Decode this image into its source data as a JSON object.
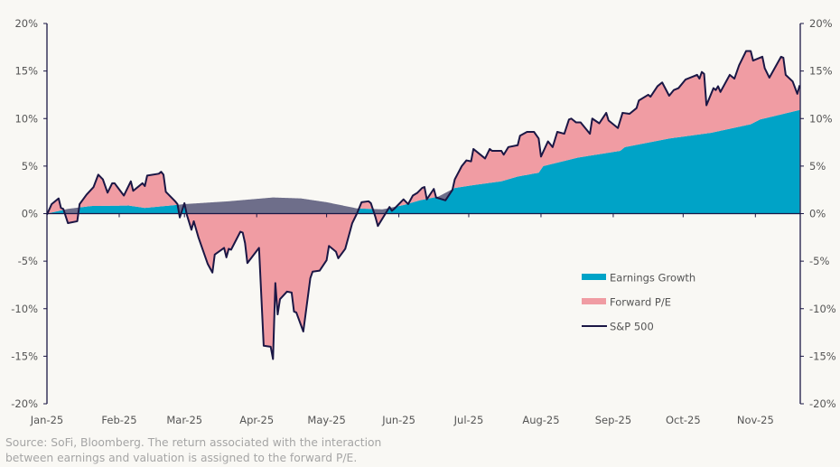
{
  "chart_data": {
    "type": "area",
    "title": "",
    "xlabel": "",
    "ylabel": "",
    "ylim": [
      -20,
      20
    ],
    "y_ticks": [
      "20%",
      "15%",
      "10%",
      "5%",
      "0%",
      "-5%",
      "-10%",
      "-15%",
      "-20%"
    ],
    "y_tick_values": [
      20,
      15,
      10,
      5,
      0,
      -5,
      -10,
      -15,
      -20
    ],
    "x_ticks": [
      "Jan-25",
      "Feb-25",
      "Mar-25",
      "Apr-25",
      "May-25",
      "Jun-25",
      "Jul-25",
      "Aug-25",
      "Sep-25",
      "Oct-25",
      "Nov-25"
    ],
    "x_tick_dates": [
      "2025-01-01",
      "2025-02-01",
      "2025-03-01",
      "2025-04-01",
      "2025-05-01",
      "2025-06-01",
      "2025-07-01",
      "2025-08-01",
      "2025-09-01",
      "2025-10-01",
      "2025-11-01"
    ],
    "xlim": [
      "2025-01-01",
      "2025-11-20"
    ],
    "grid": false,
    "legend_position": "right-center",
    "colors": {
      "earnings": "#00a3c7",
      "forward_pe": "#f09ca3",
      "overlap": "#6e6e8a",
      "sp500": "#1b1745"
    },
    "legend": [
      {
        "label": "Earnings Growth",
        "type": "area",
        "color": "#00a3c7"
      },
      {
        "label": "Forward P/E",
        "type": "area",
        "color": "#f09ca3"
      },
      {
        "label": "S&P 500",
        "type": "line",
        "color": "#1b1745"
      }
    ],
    "series": [
      {
        "name": "S&P 500",
        "unit": "%",
        "points": [
          [
            "2025-01-01",
            -0.1
          ],
          [
            "2025-01-03",
            1.0
          ],
          [
            "2025-01-06",
            1.6
          ],
          [
            "2025-01-07",
            0.6
          ],
          [
            "2025-01-08",
            0.5
          ],
          [
            "2025-01-10",
            -1.0
          ],
          [
            "2025-01-14",
            -0.8
          ],
          [
            "2025-01-15",
            1.0
          ],
          [
            "2025-01-18",
            2.0
          ],
          [
            "2025-01-21",
            2.8
          ],
          [
            "2025-01-23",
            4.1
          ],
          [
            "2025-01-25",
            3.6
          ],
          [
            "2025-01-27",
            2.2
          ],
          [
            "2025-01-29",
            3.2
          ],
          [
            "2025-01-30",
            3.2
          ],
          [
            "2025-02-03",
            1.9
          ],
          [
            "2025-02-06",
            3.4
          ],
          [
            "2025-02-07",
            2.4
          ],
          [
            "2025-02-11",
            3.2
          ],
          [
            "2025-02-12",
            2.9
          ],
          [
            "2025-02-13",
            4.0
          ],
          [
            "2025-02-18",
            4.2
          ],
          [
            "2025-02-19",
            4.4
          ],
          [
            "2025-02-20",
            4.1
          ],
          [
            "2025-02-21",
            2.3
          ],
          [
            "2025-02-25",
            1.3
          ],
          [
            "2025-02-26",
            1.0
          ],
          [
            "2025-02-27",
            -0.4
          ],
          [
            "2025-03-01",
            1.1
          ],
          [
            "2025-03-02",
            -0.1
          ],
          [
            "2025-03-04",
            -1.7
          ],
          [
            "2025-03-05",
            -0.8
          ],
          [
            "2025-03-07",
            -2.5
          ],
          [
            "2025-03-11",
            -5.3
          ],
          [
            "2025-03-13",
            -6.2
          ],
          [
            "2025-03-14",
            -4.3
          ],
          [
            "2025-03-18",
            -3.6
          ],
          [
            "2025-03-19",
            -4.6
          ],
          [
            "2025-03-20",
            -3.7
          ],
          [
            "2025-03-21",
            -3.8
          ],
          [
            "2025-03-25",
            -1.9
          ],
          [
            "2025-03-26",
            -2.0
          ],
          [
            "2025-03-27",
            -3.1
          ],
          [
            "2025-03-28",
            -5.2
          ],
          [
            "2025-04-02",
            -3.6
          ],
          [
            "2025-04-04",
            -13.9
          ],
          [
            "2025-04-07",
            -14.0
          ],
          [
            "2025-04-08",
            -15.3
          ],
          [
            "2025-04-09",
            -7.3
          ],
          [
            "2025-04-10",
            -10.6
          ],
          [
            "2025-04-11",
            -9.0
          ],
          [
            "2025-04-14",
            -8.2
          ],
          [
            "2025-04-16",
            -8.3
          ],
          [
            "2025-04-17",
            -10.3
          ],
          [
            "2025-04-18",
            -10.4
          ],
          [
            "2025-04-21",
            -12.4
          ],
          [
            "2025-04-24",
            -6.8
          ],
          [
            "2025-04-25",
            -6.1
          ],
          [
            "2025-04-28",
            -6.0
          ],
          [
            "2025-05-01",
            -4.9
          ],
          [
            "2025-05-02",
            -3.4
          ],
          [
            "2025-05-05",
            -4.0
          ],
          [
            "2025-05-06",
            -4.7
          ],
          [
            "2025-05-09",
            -3.7
          ],
          [
            "2025-05-12",
            -1.0
          ],
          [
            "2025-05-14",
            0.0
          ],
          [
            "2025-05-16",
            1.2
          ],
          [
            "2025-05-19",
            1.3
          ],
          [
            "2025-05-20",
            1.1
          ],
          [
            "2025-05-22",
            -0.4
          ],
          [
            "2025-05-23",
            -1.3
          ],
          [
            "2025-05-28",
            0.7
          ],
          [
            "2025-05-29",
            0.3
          ],
          [
            "2025-05-30",
            0.5
          ],
          [
            "2025-06-03",
            1.5
          ],
          [
            "2025-06-05",
            1.0
          ],
          [
            "2025-06-07",
            1.9
          ],
          [
            "2025-06-09",
            2.2
          ],
          [
            "2025-06-11",
            2.7
          ],
          [
            "2025-06-12",
            2.8
          ],
          [
            "2025-06-13",
            1.5
          ],
          [
            "2025-06-16",
            2.6
          ],
          [
            "2025-06-17",
            1.7
          ],
          [
            "2025-06-21",
            1.4
          ],
          [
            "2025-06-24",
            2.5
          ],
          [
            "2025-06-25",
            3.6
          ],
          [
            "2025-06-28",
            5.0
          ],
          [
            "2025-06-30",
            5.6
          ],
          [
            "2025-07-02",
            5.5
          ],
          [
            "2025-07-03",
            6.8
          ],
          [
            "2025-07-08",
            5.8
          ],
          [
            "2025-07-10",
            6.8
          ],
          [
            "2025-07-11",
            6.6
          ],
          [
            "2025-07-15",
            6.6
          ],
          [
            "2025-07-16",
            6.2
          ],
          [
            "2025-07-18",
            7.0
          ],
          [
            "2025-07-22",
            7.2
          ],
          [
            "2025-07-23",
            8.2
          ],
          [
            "2025-07-26",
            8.6
          ],
          [
            "2025-07-29",
            8.6
          ],
          [
            "2025-07-31",
            7.9
          ],
          [
            "2025-08-01",
            6.0
          ],
          [
            "2025-08-04",
            7.6
          ],
          [
            "2025-08-06",
            7.0
          ],
          [
            "2025-08-08",
            8.6
          ],
          [
            "2025-08-11",
            8.4
          ],
          [
            "2025-08-13",
            9.9
          ],
          [
            "2025-08-14",
            10.0
          ],
          [
            "2025-08-16",
            9.6
          ],
          [
            "2025-08-18",
            9.6
          ],
          [
            "2025-08-22",
            8.4
          ],
          [
            "2025-08-23",
            10.0
          ],
          [
            "2025-08-26",
            9.5
          ],
          [
            "2025-08-29",
            10.6
          ],
          [
            "2025-08-30",
            9.8
          ],
          [
            "2025-09-03",
            9.0
          ],
          [
            "2025-09-05",
            10.6
          ],
          [
            "2025-09-08",
            10.5
          ],
          [
            "2025-09-11",
            11.1
          ],
          [
            "2025-09-12",
            11.9
          ],
          [
            "2025-09-16",
            12.5
          ],
          [
            "2025-09-17",
            12.3
          ],
          [
            "2025-09-20",
            13.4
          ],
          [
            "2025-09-22",
            13.8
          ],
          [
            "2025-09-25",
            12.4
          ],
          [
            "2025-09-27",
            13.0
          ],
          [
            "2025-09-29",
            13.2
          ],
          [
            "2025-10-02",
            14.1
          ],
          [
            "2025-10-06",
            14.5
          ],
          [
            "2025-10-07",
            14.6
          ],
          [
            "2025-10-08",
            14.2
          ],
          [
            "2025-10-09",
            14.9
          ],
          [
            "2025-10-10",
            14.7
          ],
          [
            "2025-10-11",
            11.4
          ],
          [
            "2025-10-14",
            13.2
          ],
          [
            "2025-10-15",
            13.0
          ],
          [
            "2025-10-16",
            13.4
          ],
          [
            "2025-10-17",
            12.8
          ],
          [
            "2025-10-21",
            14.6
          ],
          [
            "2025-10-23",
            14.2
          ],
          [
            "2025-10-25",
            15.6
          ],
          [
            "2025-10-28",
            17.1
          ],
          [
            "2025-10-30",
            17.1
          ],
          [
            "2025-10-31",
            16.1
          ],
          [
            "2025-11-04",
            16.5
          ],
          [
            "2025-11-05",
            15.3
          ],
          [
            "2025-11-07",
            14.3
          ],
          [
            "2025-11-12",
            16.5
          ],
          [
            "2025-11-13",
            16.4
          ],
          [
            "2025-11-14",
            14.6
          ],
          [
            "2025-11-17",
            13.9
          ],
          [
            "2025-11-19",
            12.6
          ],
          [
            "2025-11-20",
            13.5
          ]
        ]
      },
      {
        "name": "Earnings Growth",
        "unit": "%",
        "points": [
          [
            "2025-01-01",
            0.0
          ],
          [
            "2025-01-10",
            0.5
          ],
          [
            "2025-01-20",
            0.8
          ],
          [
            "2025-02-05",
            0.85
          ],
          [
            "2025-02-12",
            0.6
          ],
          [
            "2025-02-25",
            0.9
          ],
          [
            "2025-03-01",
            1.0
          ],
          [
            "2025-03-20",
            1.3
          ],
          [
            "2025-04-08",
            1.7
          ],
          [
            "2025-04-20",
            1.6
          ],
          [
            "2025-05-01",
            1.2
          ],
          [
            "2025-05-14",
            0.55
          ],
          [
            "2025-05-25",
            0.45
          ],
          [
            "2025-06-03",
            0.9
          ],
          [
            "2025-06-10",
            1.4
          ],
          [
            "2025-06-18",
            1.8
          ],
          [
            "2025-06-25",
            2.7
          ],
          [
            "2025-07-03",
            3.0
          ],
          [
            "2025-07-15",
            3.4
          ],
          [
            "2025-07-22",
            3.9
          ],
          [
            "2025-07-31",
            4.3
          ],
          [
            "2025-08-02",
            5.0
          ],
          [
            "2025-08-17",
            5.9
          ],
          [
            "2025-09-04",
            6.6
          ],
          [
            "2025-09-06",
            7.0
          ],
          [
            "2025-09-25",
            7.9
          ],
          [
            "2025-10-13",
            8.5
          ],
          [
            "2025-10-30",
            9.4
          ],
          [
            "2025-11-03",
            9.9
          ],
          [
            "2025-11-20",
            10.9
          ]
        ]
      },
      {
        "name": "Forward P/E",
        "unit": "%",
        "derived_from": "S&P 500 minus Earnings Growth"
      }
    ]
  },
  "footer": {
    "line1": "Source: SoFi, Bloomberg. The return associated with the interaction",
    "line2": "between earnings and valuation is assigned to the forward P/E."
  }
}
